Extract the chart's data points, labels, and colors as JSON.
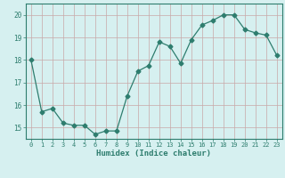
{
  "x": [
    0,
    1,
    2,
    3,
    4,
    5,
    6,
    7,
    8,
    9,
    10,
    11,
    12,
    13,
    14,
    15,
    16,
    17,
    18,
    19,
    20,
    21,
    22,
    23
  ],
  "y": [
    18.0,
    15.7,
    15.85,
    15.2,
    15.1,
    15.1,
    14.7,
    14.85,
    14.85,
    16.4,
    17.5,
    17.75,
    18.8,
    18.6,
    17.85,
    18.9,
    19.55,
    19.75,
    20.0,
    20.0,
    19.35,
    19.2,
    19.1,
    18.2
  ],
  "line_color": "#2e7d6e",
  "marker": "D",
  "marker_size": 2.5,
  "bg_color": "#d6f0f0",
  "grid_color": "#c9a8a8",
  "xlabel": "Humidex (Indice chaleur)",
  "ylim": [
    14.5,
    20.5
  ],
  "xlim": [
    -0.5,
    23.5
  ],
  "yticks": [
    15,
    16,
    17,
    18,
    19,
    20
  ],
  "xticks": [
    0,
    1,
    2,
    3,
    4,
    5,
    6,
    7,
    8,
    9,
    10,
    11,
    12,
    13,
    14,
    15,
    16,
    17,
    18,
    19,
    20,
    21,
    22,
    23
  ],
  "figsize": [
    3.2,
    2.0
  ],
  "dpi": 100
}
